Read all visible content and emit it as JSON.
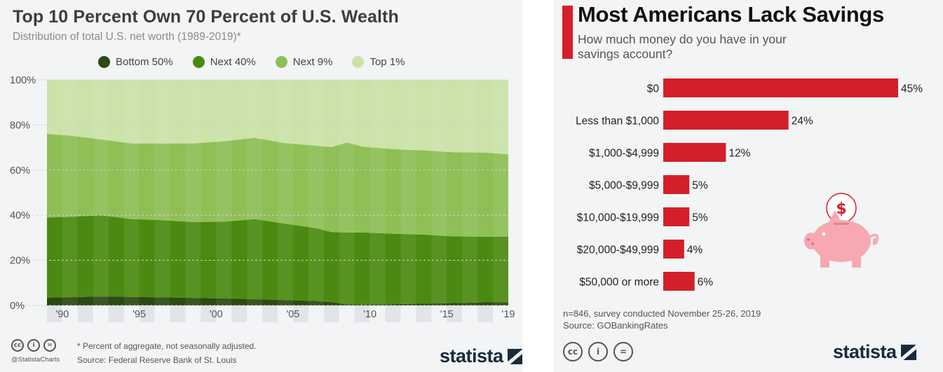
{
  "left": {
    "handle": "@StatistaCharts",
    "footnote": "* Percent of aggregate, not seasonally adjusted.",
    "source": "Source: Federal Reserve Bank of St. Louis",
    "brand": "statista"
  },
  "right": {
    "note": "n=846, survey conducted November 25-26, 2019",
    "source": "Source: GOBankingRates",
    "brand": "statista",
    "icon": "piggy-bank-icon"
  },
  "chart_data": [
    {
      "type": "area",
      "stacked": true,
      "title": "Top 10 Percent Own 70 Percent of U.S. Wealth",
      "subtitle": "Distribution of total U.S. net worth (1989-2019)*",
      "xlabel": "",
      "ylabel": "",
      "ylim": [
        0,
        100
      ],
      "y_ticks": [
        "0%",
        "20%",
        "40%",
        "60%",
        "80%",
        "100%"
      ],
      "x_ticks": [
        "'90",
        "'95",
        "'00",
        "'05",
        "'10",
        "'15",
        "'19"
      ],
      "x_tick_years": [
        1990,
        1995,
        2000,
        2005,
        2010,
        2015,
        2019
      ],
      "x": [
        1989.5,
        1991,
        1993,
        1995,
        1997,
        1999,
        2001,
        2003,
        2005,
        2007,
        2008,
        2009,
        2010,
        2012,
        2014,
        2016,
        2018,
        2019.5
      ],
      "series": [
        {
          "name": "Bottom 50%",
          "color": "#2c4a12",
          "values": [
            3.5,
            3.7,
            4.0,
            3.8,
            3.6,
            3.4,
            3.1,
            2.8,
            2.4,
            2.0,
            1.5,
            0.5,
            0.4,
            0.6,
            0.8,
            1.1,
            1.4,
            1.5
          ]
        },
        {
          "name": "Next 40%",
          "color": "#4b8a12",
          "values": [
            35.5,
            35.6,
            36.0,
            34.5,
            34.2,
            33.6,
            34.0,
            35.5,
            33.8,
            32.3,
            31.0,
            31.8,
            32.0,
            31.2,
            30.6,
            29.5,
            29.1,
            29.0
          ]
        },
        {
          "name": "Next 9%",
          "color": "#8fbf55",
          "values": [
            37.0,
            36.0,
            33.6,
            33.5,
            34.0,
            34.8,
            35.7,
            36.0,
            35.8,
            36.5,
            37.7,
            40.0,
            38.0,
            37.5,
            37.3,
            37.3,
            37.3,
            36.5
          ]
        },
        {
          "name": "Top 1%",
          "color": "#cbe2a8",
          "values": [
            24.0,
            24.7,
            26.4,
            28.2,
            28.2,
            28.2,
            27.2,
            25.7,
            28.0,
            29.2,
            29.8,
            27.7,
            29.6,
            30.7,
            31.3,
            32.1,
            32.2,
            33.0
          ]
        }
      ]
    },
    {
      "type": "bar",
      "orientation": "horizontal",
      "title": "Most Americans Lack Savings",
      "subtitle": "How much money do you have in your savings account?",
      "categories": [
        "$0",
        "Less than $1,000",
        "$1,000-$4,999",
        "$5,000-$9,999",
        "$10,000-$19,999",
        "$20,000-$49,999",
        "$50,000 or more"
      ],
      "values": [
        45,
        24,
        12,
        5,
        5,
        4,
        6
      ],
      "value_labels": [
        "45%",
        "24%",
        "12%",
        "5%",
        "5%",
        "4%",
        "6%"
      ],
      "color": "#d41f2a",
      "xlim": [
        0,
        45
      ]
    }
  ]
}
